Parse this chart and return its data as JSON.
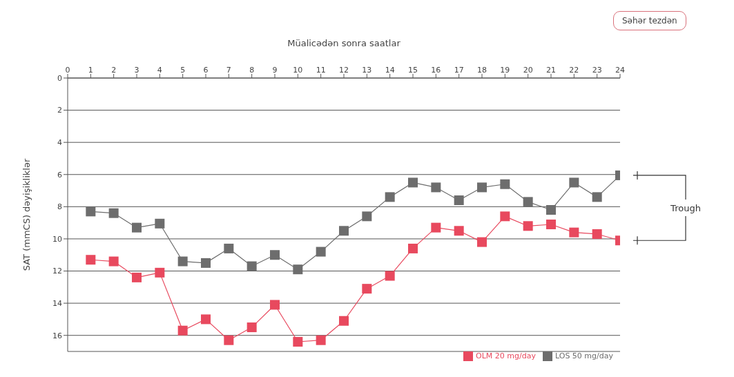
{
  "chart_data": {
    "type": "line",
    "xlabel": "Müalicədən sonra saatlar",
    "ylabel": "SAT (mmCS) dəyişikliklər",
    "x": [
      1,
      2,
      3,
      4,
      5,
      6,
      7,
      8,
      9,
      10,
      11,
      12,
      13,
      14,
      15,
      16,
      17,
      18,
      19,
      20,
      21,
      22,
      23,
      24
    ],
    "series": [
      {
        "name": "OLM 20 mg/day",
        "color": "#e8495e",
        "values": [
          11.3,
          11.4,
          12.4,
          12.1,
          15.7,
          15.0,
          16.3,
          15.5,
          14.1,
          16.4,
          16.3,
          15.1,
          13.1,
          12.3,
          10.6,
          9.3,
          9.5,
          10.2,
          8.6,
          9.2,
          9.1,
          9.6,
          9.7,
          10.1
        ]
      },
      {
        "name": "LOS 50 mg/day",
        "color": "#6d6d6d",
        "values": [
          8.3,
          8.4,
          9.3,
          9.05,
          11.4,
          11.5,
          10.6,
          11.7,
          11.0,
          11.9,
          10.8,
          9.5,
          8.6,
          7.4,
          6.5,
          6.8,
          7.6,
          6.8,
          6.6,
          7.7,
          8.2,
          6.5,
          7.4,
          6.05
        ]
      }
    ],
    "xlim": [
      0,
      24
    ],
    "xticks": [
      0,
      1,
      2,
      3,
      4,
      5,
      6,
      7,
      8,
      9,
      10,
      11,
      12,
      13,
      14,
      15,
      16,
      17,
      18,
      19,
      20,
      21,
      22,
      23,
      24
    ],
    "ylim": [
      17,
      0
    ],
    "yticks": [
      0,
      2,
      4,
      6,
      8,
      10,
      12,
      14,
      16
    ],
    "grid": "y",
    "legend": "bottom right",
    "marker": "square",
    "line_style": "solid",
    "annotations": [
      "Səhər tezdən",
      "Trough"
    ]
  }
}
